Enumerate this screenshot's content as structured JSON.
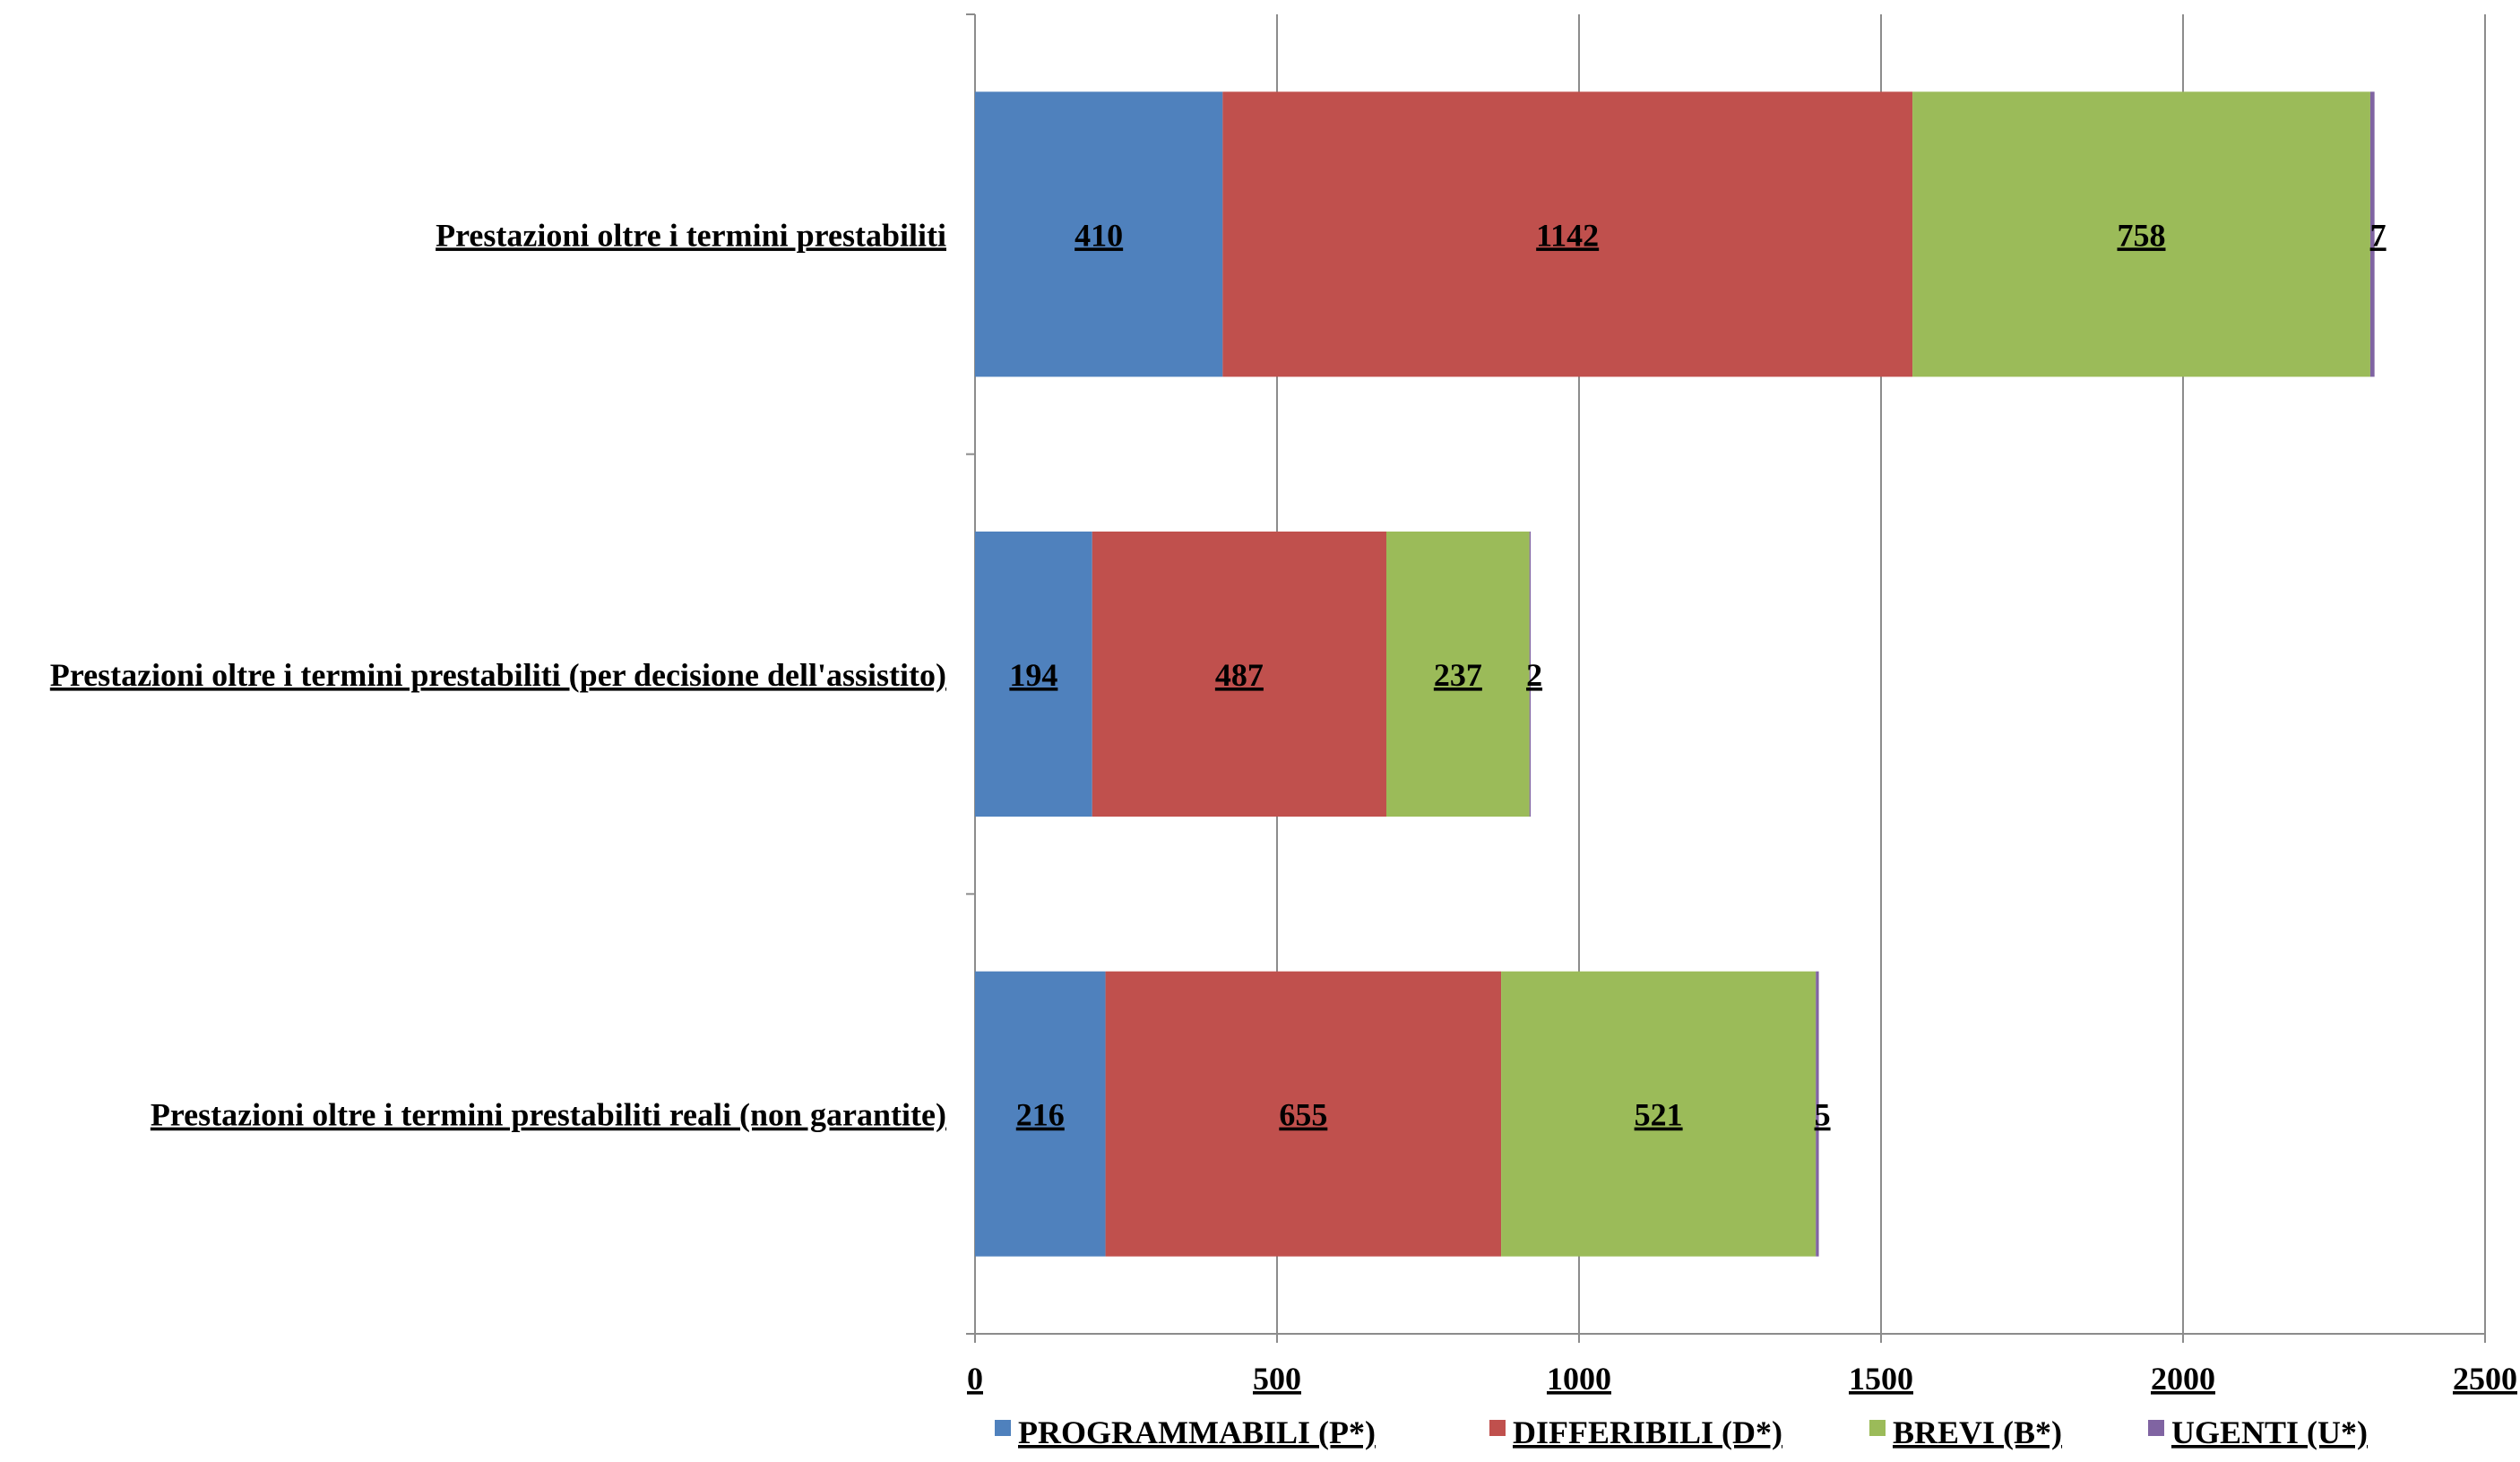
{
  "chart_data": {
    "type": "bar",
    "orientation": "horizontal",
    "stacked": true,
    "categories": [
      "Prestazioni oltre i termini prestabiliti",
      "Prestazioni oltre i termini prestabiliti (per decisione dell'assistito)",
      "Prestazioni oltre i termini prestabiliti reali (non garantite)"
    ],
    "series": [
      {
        "name": "PROGRAMMABILI (P*)",
        "color": "#4F81BD",
        "values": [
          410,
          194,
          216
        ]
      },
      {
        "name": "DIFFERIBILI (D*)",
        "color": "#C0504D",
        "values": [
          1142,
          487,
          655
        ]
      },
      {
        "name": "BREVI (B*)",
        "color": "#9BBB59",
        "values": [
          758,
          237,
          521
        ]
      },
      {
        "name": "UGENTI (U*)",
        "color": "#8064A2",
        "values": [
          7,
          2,
          5
        ]
      }
    ],
    "xlim": [
      0,
      2500
    ],
    "xticks": [
      "0",
      "500",
      "1000",
      "1500",
      "2000",
      "2500"
    ],
    "grid": true,
    "legend_position": "bottom",
    "title": "",
    "xlabel": "",
    "ylabel": ""
  }
}
